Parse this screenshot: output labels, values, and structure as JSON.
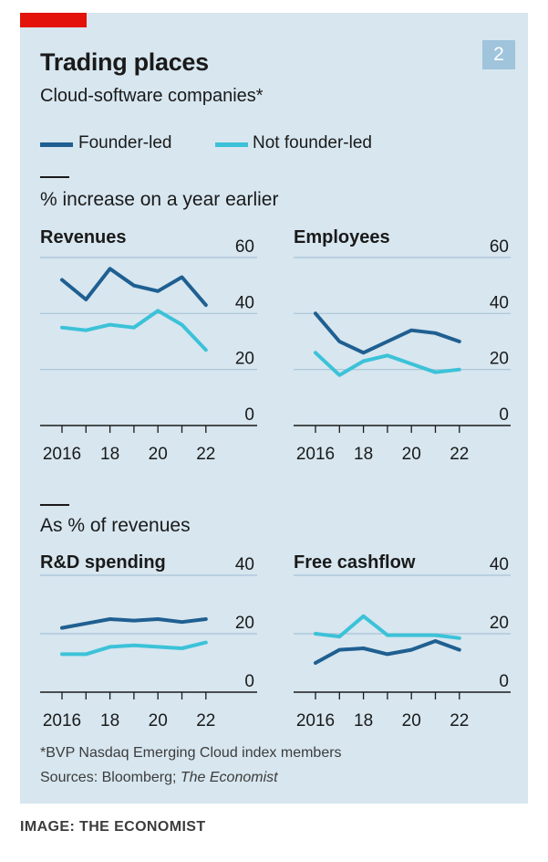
{
  "badge": "2",
  "title": "Trading places",
  "subtitle": "Cloud-software companies*",
  "legend": [
    {
      "label": "Founder-led",
      "color": "#1f5f91"
    },
    {
      "label": "Not founder-led",
      "color": "#3cc2d8"
    }
  ],
  "sections": [
    "% increase on a year earlier",
    "As % of revenues"
  ],
  "footnote": "*BVP Nasdaq Emerging Cloud index members",
  "sources_prefix": "Sources: Bloomberg; ",
  "sources_italic": "The Economist",
  "credit": "IMAGE: THE ECONOMIST",
  "colors": {
    "background": "#d7e6ef",
    "accent_red": "#e3120b",
    "founder": "#1f5f91",
    "not_founder": "#3cc2d8",
    "grid": "#a7c3d6"
  },
  "chart_data": [
    {
      "type": "line",
      "title": "Revenues",
      "x": [
        2016,
        2017,
        2018,
        2019,
        2020,
        2021,
        2022
      ],
      "xticks": [
        "2016",
        "18",
        "20",
        "22"
      ],
      "ylim": [
        0,
        60
      ],
      "yticks": [
        0,
        20,
        40,
        60
      ],
      "series": [
        {
          "name": "Founder-led",
          "values": [
            52,
            45,
            56,
            50,
            48,
            53,
            43
          ]
        },
        {
          "name": "Not founder-led",
          "values": [
            35,
            34,
            36,
            35,
            41,
            36,
            27
          ]
        }
      ]
    },
    {
      "type": "line",
      "title": "Employees",
      "x": [
        2016,
        2017,
        2018,
        2019,
        2020,
        2021,
        2022
      ],
      "xticks": [
        "2016",
        "18",
        "20",
        "22"
      ],
      "ylim": [
        0,
        60
      ],
      "yticks": [
        0,
        20,
        40,
        60
      ],
      "series": [
        {
          "name": "Founder-led",
          "values": [
            40,
            30,
            26,
            30,
            34,
            33,
            30
          ]
        },
        {
          "name": "Not founder-led",
          "values": [
            26,
            18,
            23,
            25,
            22,
            19,
            20
          ]
        }
      ]
    },
    {
      "type": "line",
      "title": "R&D spending",
      "x": [
        2016,
        2017,
        2018,
        2019,
        2020,
        2021,
        2022
      ],
      "xticks": [
        "2016",
        "18",
        "20",
        "22"
      ],
      "ylim": [
        0,
        40
      ],
      "yticks": [
        0,
        20,
        40
      ],
      "series": [
        {
          "name": "Founder-led",
          "values": [
            22,
            23.5,
            25,
            24.5,
            25,
            24,
            25
          ]
        },
        {
          "name": "Not founder-led",
          "values": [
            13,
            13,
            15.5,
            16,
            15.5,
            15,
            17
          ]
        }
      ]
    },
    {
      "type": "line",
      "title": "Free cashflow",
      "x": [
        2016,
        2017,
        2018,
        2019,
        2020,
        2021,
        2022
      ],
      "xticks": [
        "2016",
        "18",
        "20",
        "22"
      ],
      "ylim": [
        0,
        40
      ],
      "yticks": [
        0,
        20,
        40
      ],
      "series": [
        {
          "name": "Founder-led",
          "values": [
            10,
            14.5,
            15,
            13,
            14.5,
            17.5,
            14.5
          ]
        },
        {
          "name": "Not founder-led",
          "values": [
            20,
            19,
            26,
            19.5,
            19.5,
            19.5,
            18.5
          ]
        }
      ]
    }
  ]
}
